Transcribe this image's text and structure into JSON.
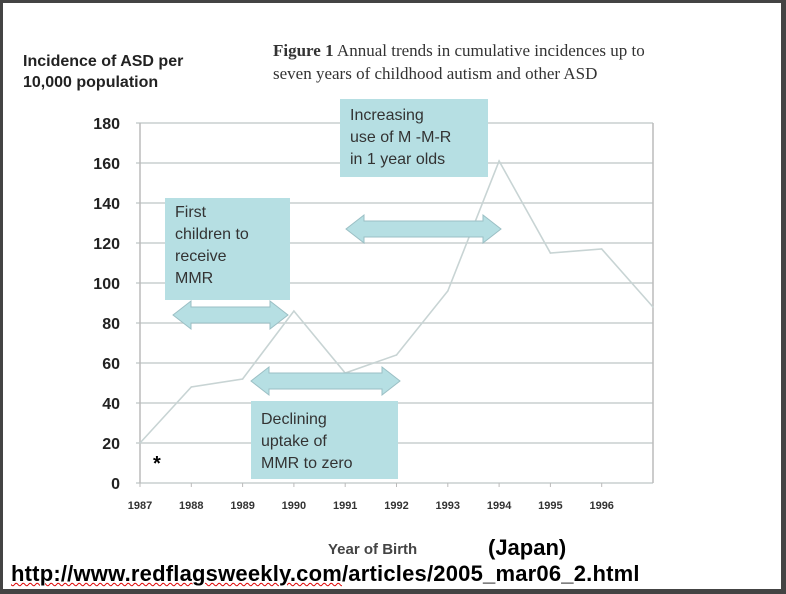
{
  "chart_data": {
    "type": "line",
    "title": "Figure 1 Annual trends in cumulative incidences up to seven years of childhood autism and other ASD",
    "title_bold": "Figure 1",
    "title_line1": "Annual trends in cumulative incidences up to",
    "title_line2": "seven years of childhood autism and other ASD",
    "ylabel_line1": "Incidence of ASD per",
    "ylabel_line2": "10,000 population",
    "xlabel": "Year of Birth",
    "ylim": [
      0,
      180
    ],
    "yticks": [
      "0",
      "20",
      "40",
      "60",
      "80",
      "100",
      "120",
      "140",
      "160",
      "180"
    ],
    "xticks": [
      "1987",
      "1988",
      "1989",
      "1990",
      "1991",
      "1992",
      "1993",
      "1994",
      "1995",
      "1996"
    ],
    "x": [
      1987,
      1988,
      1989,
      1990,
      1991,
      1992,
      1993,
      1994,
      1995,
      1996,
      1997
    ],
    "values": [
      20,
      48,
      52,
      86,
      55,
      64,
      96,
      161,
      115,
      117,
      88
    ],
    "grid": true,
    "line_color": "#c8d4d4",
    "annotations": {
      "first": [
        "First",
        "children to",
        "receive",
        "MMR"
      ],
      "increasing": [
        "Increasing",
        "use of M -M-R",
        "in 1 year olds"
      ],
      "declining": [
        "Declining",
        "uptake of",
        "MMR to zero"
      ],
      "asterisk": "*"
    },
    "box_color": "#b6dfe3"
  },
  "caption": {
    "country": "(Japan)",
    "url_underlined": "http://www.redflagsweekly.com",
    "url_rest": "/articles/2005_mar06_2.html"
  }
}
